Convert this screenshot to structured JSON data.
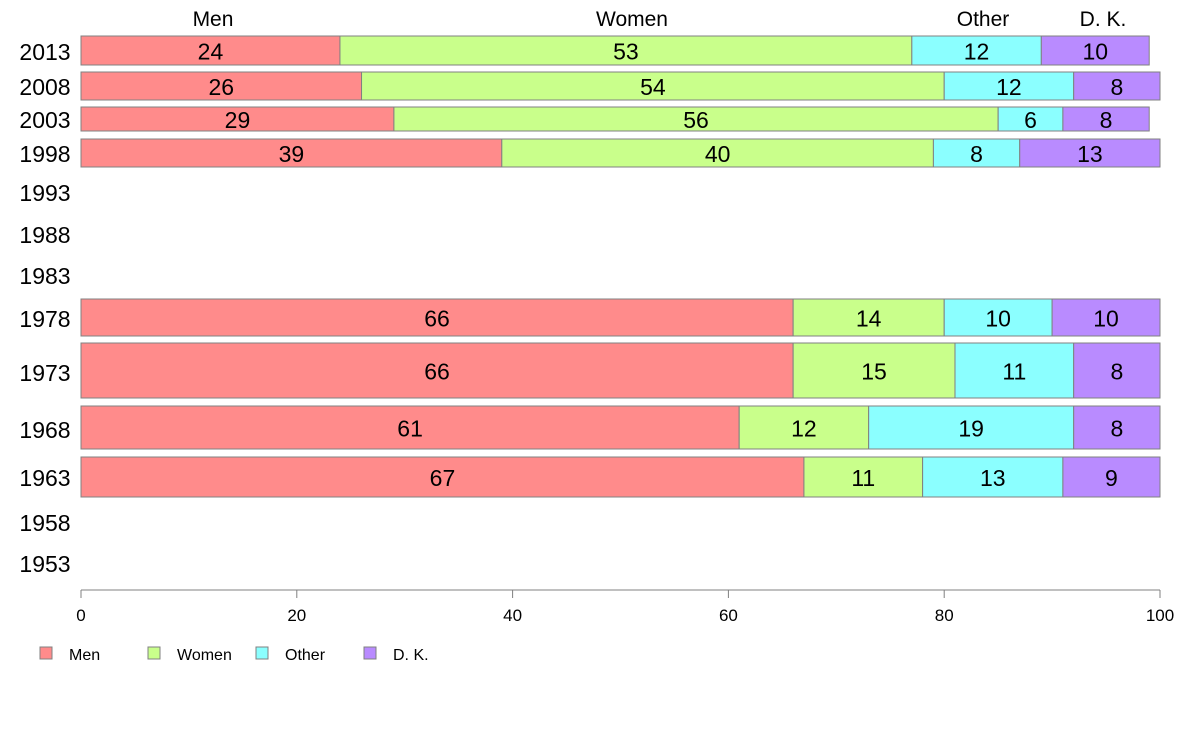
{
  "chart_data": {
    "type": "bar",
    "orientation": "horizontal",
    "stacked": true,
    "column_labels": [
      "Men",
      "Women",
      "Other",
      "D. K."
    ],
    "categories": [
      "2013",
      "2008",
      "2003",
      "1998",
      "1993",
      "1988",
      "1983",
      "1978",
      "1973",
      "1968",
      "1963",
      "1958",
      "1953"
    ],
    "series": [
      {
        "name": "Men",
        "color": "#ff8b8b",
        "values": [
          24,
          26,
          29,
          39,
          null,
          null,
          null,
          66,
          66,
          61,
          67,
          null,
          null
        ]
      },
      {
        "name": "Women",
        "color": "#c9ff8b",
        "values": [
          53,
          54,
          56,
          40,
          null,
          null,
          null,
          14,
          15,
          12,
          11,
          null,
          null
        ]
      },
      {
        "name": "Other",
        "color": "#8bffff",
        "values": [
          12,
          12,
          6,
          8,
          null,
          null,
          null,
          10,
          11,
          19,
          13,
          null,
          null
        ]
      },
      {
        "name": "D. K.",
        "color": "#b98bff",
        "values": [
          10,
          8,
          8,
          13,
          null,
          null,
          null,
          10,
          8,
          8,
          9,
          null,
          null
        ]
      }
    ],
    "xlim": [
      0,
      100
    ],
    "xticks": [
      "0",
      "20",
      "40",
      "60",
      "80",
      "100"
    ],
    "legend": {
      "placement": "bottom-left",
      "items": [
        "Men",
        "Women",
        "Other",
        "D. K."
      ]
    },
    "grid": false,
    "edge_color": "#808080"
  }
}
